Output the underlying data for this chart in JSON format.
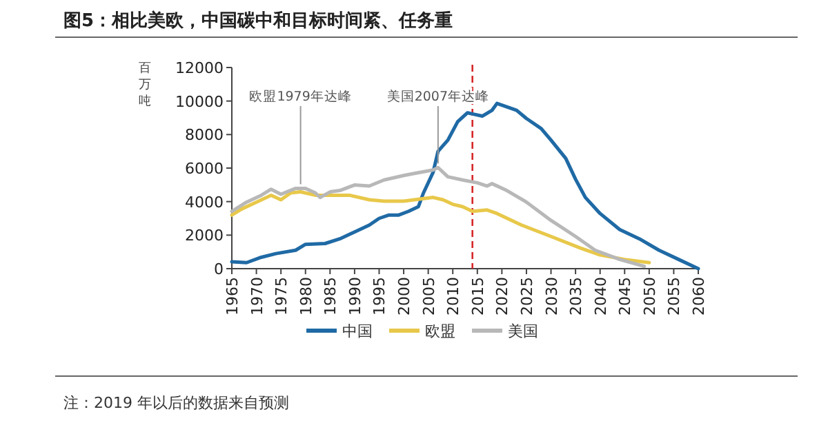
{
  "chart_data": {
    "type": "line",
    "title": "图5：相比美欧，中国碳中和目标时间紧、任务重",
    "ylabel": "百万吨",
    "xlim": [
      1965,
      2060
    ],
    "xticks": [
      1965,
      1970,
      1975,
      1980,
      1985,
      1990,
      1995,
      2000,
      2005,
      2010,
      2015,
      2020,
      2025,
      2030,
      2035,
      2040,
      2045,
      2050,
      2055,
      2060
    ],
    "ylim": [
      0,
      12000
    ],
    "yticks": [
      0,
      2000,
      4000,
      6000,
      8000,
      10000,
      12000
    ],
    "grid": false,
    "legend": "bottom",
    "marker": "none",
    "line_style": "solid",
    "series": [
      {
        "name": "中国",
        "color": "#1f6aa5",
        "x": [
          1965,
          1968,
          1971,
          1974,
          1978,
          1980,
          1984,
          1987,
          1990,
          1993,
          1995,
          1997,
          1999,
          2001,
          2003,
          2004,
          2006,
          2007,
          2009,
          2011,
          2013,
          2014,
          2016,
          2018,
          2019,
          2023,
          2025,
          2028,
          2030,
          2033,
          2035,
          2037,
          2040,
          2044,
          2048,
          2052,
          2056,
          2060
        ],
        "values": [
          410,
          360,
          680,
          900,
          1100,
          1450,
          1500,
          1780,
          2190,
          2600,
          3000,
          3200,
          3200,
          3420,
          3700,
          4500,
          5750,
          7000,
          7670,
          8770,
          9300,
          9230,
          9100,
          9450,
          9860,
          9450,
          8960,
          8360,
          7670,
          6580,
          5340,
          4250,
          3290,
          2330,
          1780,
          1100,
          550,
          0
        ]
      },
      {
        "name": "欧盟",
        "color": "#e8c84a",
        "x": [
          1965,
          1967,
          1970,
          1973,
          1975,
          1977,
          1979,
          1982,
          1984,
          1989,
          1993,
          1996,
          2000,
          2006,
          2008,
          2010,
          2012,
          2014,
          2017,
          2019,
          2024,
          2030,
          2036,
          2040,
          2045,
          2050
        ],
        "values": [
          3200,
          3560,
          3970,
          4380,
          4110,
          4520,
          4580,
          4380,
          4380,
          4380,
          4110,
          4030,
          4030,
          4250,
          4110,
          3840,
          3700,
          3420,
          3500,
          3290,
          2600,
          1920,
          1230,
          820,
          550,
          360
        ]
      },
      {
        "name": "美国",
        "color": "#b8b8b8",
        "x": [
          1965,
          1968,
          1971,
          1973,
          1975,
          1978,
          1980,
          1982,
          1983,
          1985,
          1987,
          1990,
          1993,
          1996,
          2000,
          2002,
          2006,
          2007,
          2009,
          2012,
          2015,
          2017,
          2018,
          2021,
          2025,
          2030,
          2035,
          2039,
          2044,
          2049
        ],
        "values": [
          3420,
          3970,
          4380,
          4740,
          4440,
          4790,
          4790,
          4520,
          4250,
          4580,
          4660,
          4990,
          4930,
          5290,
          5560,
          5670,
          5890,
          6030,
          5480,
          5290,
          5120,
          4930,
          5070,
          4660,
          3970,
          2880,
          1920,
          1100,
          550,
          140
        ]
      }
    ],
    "ref_lines": [
      {
        "axis": "x",
        "value": 2014,
        "color": "#d62728",
        "line_style": "dashed"
      }
    ],
    "annotations": [
      {
        "text": "欧盟1979年达峰",
        "x": 1979,
        "y": 4790
      },
      {
        "text": "美国2007年达峰",
        "x": 2007,
        "y": 6030
      },
      "注：2019 年以后的数据来自预测"
    ]
  }
}
